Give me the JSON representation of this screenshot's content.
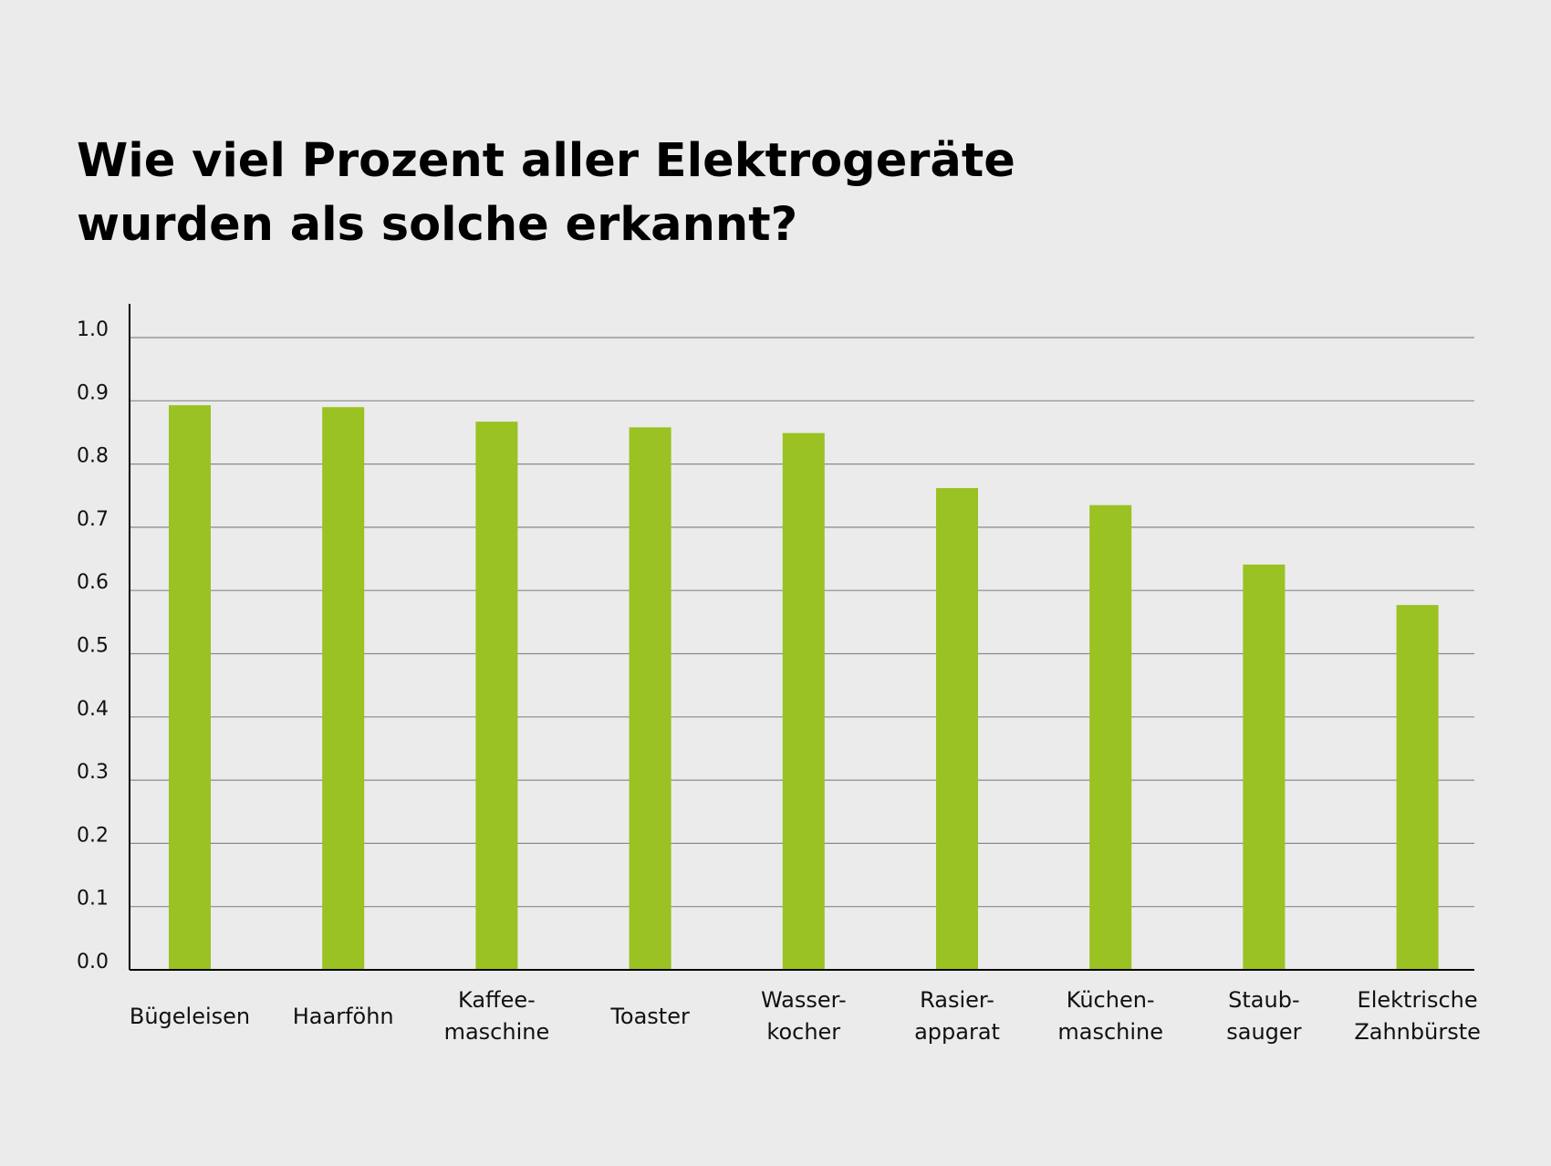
{
  "title": {
    "line1": "Wie viel Prozent aller Elektrogeräte",
    "line2": "wurden als solche erkannt?"
  },
  "colors": {
    "background": "#ebebeb",
    "bar": "#99c222",
    "grid": "#8a8a8a",
    "axis": "#000000"
  },
  "chart_data": {
    "type": "bar",
    "categories": [
      [
        "Bügeleisen"
      ],
      [
        "Haarföhn"
      ],
      [
        "Kaffee-",
        "maschine"
      ],
      [
        "Toaster"
      ],
      [
        "Wasser-",
        "kocher"
      ],
      [
        "Rasier-",
        "apparat"
      ],
      [
        "Küchen-",
        "maschine"
      ],
      [
        "Staub-",
        "sauger"
      ],
      [
        "Elektrische",
        "Zahnbürste"
      ]
    ],
    "values": [
      0.893,
      0.89,
      0.867,
      0.858,
      0.849,
      0.762,
      0.735,
      0.641,
      0.577
    ],
    "yticks": [
      "0.0",
      "0.1",
      "0.2",
      "0.3",
      "0.4",
      "0.5",
      "0.6",
      "0.7",
      "0.8",
      "0.9",
      "1.0"
    ],
    "ylim": [
      0,
      1.0
    ],
    "grid": true,
    "xlabel": "",
    "ylabel": ""
  }
}
